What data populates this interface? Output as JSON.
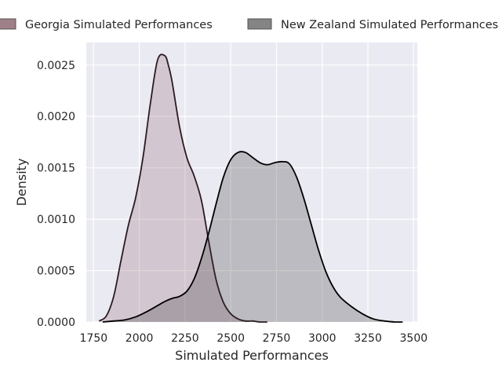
{
  "chart_data": {
    "type": "area",
    "title": "",
    "xlabel": "Simulated Performances",
    "ylabel": "Density",
    "xlim": [
      1710,
      3520
    ],
    "ylim": [
      0,
      0.00272
    ],
    "xticks": [
      1750,
      2000,
      2250,
      2500,
      2750,
      3000,
      3250,
      3500
    ],
    "xtick_labels": [
      "1750",
      "2000",
      "2250",
      "2500",
      "2750",
      "3000",
      "3250",
      "3500"
    ],
    "yticks": [
      0,
      0.0005,
      0.001,
      0.0015,
      0.002,
      0.0025
    ],
    "ytick_labels": [
      "0.0000",
      "0.0005",
      "0.0010",
      "0.0015",
      "0.0020",
      "0.0025"
    ],
    "grid": true,
    "legend_position": "top",
    "series": [
      {
        "name": "Georgia Simulated Performances",
        "fill_color": "#8b5a6b",
        "legend_color": "#9f8089",
        "line_color": "#2b1b20",
        "x": [
          1780,
          1820,
          1860,
          1900,
          1940,
          1980,
          2020,
          2060,
          2100,
          2140,
          2160,
          2180,
          2220,
          2260,
          2300,
          2340,
          2380,
          2420,
          2460,
          2500,
          2540,
          2580,
          2620,
          2660,
          2700
        ],
        "values": [
          1e-05,
          6e-05,
          0.00025,
          0.0006,
          0.00094,
          0.00121,
          0.0016,
          0.00212,
          0.00255,
          0.00259,
          0.00249,
          0.00233,
          0.0019,
          0.0016,
          0.00142,
          0.00118,
          0.00078,
          0.00041,
          0.00019,
          8e-05,
          3e-05,
          1e-05,
          1e-05,
          0.0,
          0.0
        ]
      },
      {
        "name": "New Zealand Simulated Performances",
        "fill_color": "#2f2f2f",
        "legend_color": "#848484",
        "line_color": "#000000",
        "x": [
          1800,
          1860,
          1920,
          1980,
          2040,
          2100,
          2140,
          2180,
          2220,
          2260,
          2300,
          2340,
          2380,
          2420,
          2460,
          2500,
          2540,
          2580,
          2620,
          2660,
          2700,
          2740,
          2780,
          2820,
          2860,
          2900,
          2940,
          2980,
          3020,
          3060,
          3100,
          3160,
          3220,
          3280,
          3340,
          3400,
          3440
        ],
        "values": [
          0.0,
          1e-05,
          2e-05,
          5e-05,
          0.0001,
          0.00016,
          0.0002,
          0.00023,
          0.00025,
          0.0003,
          0.00042,
          0.00062,
          0.00087,
          0.00115,
          0.00141,
          0.00158,
          0.00165,
          0.00165,
          0.0016,
          0.00155,
          0.00153,
          0.00155,
          0.00156,
          0.00154,
          0.00141,
          0.0012,
          0.00095,
          0.0007,
          0.00049,
          0.00034,
          0.00024,
          0.00015,
          8e-05,
          3e-05,
          1e-05,
          0.0,
          0.0
        ]
      }
    ]
  }
}
